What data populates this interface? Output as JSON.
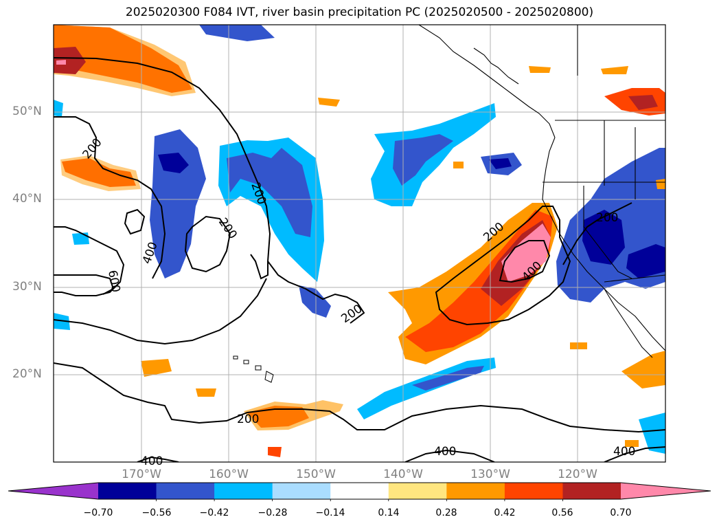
{
  "title": "2025020300 F084 IVT, river basin precipitation PC (2025020500 - 2025020800)",
  "axes": {
    "lat_labels": [
      "50°N",
      "40°N",
      "30°N",
      "20°N"
    ],
    "lon_labels": [
      "170°W",
      "160°W",
      "150°W",
      "140°W",
      "130°W",
      "120°W"
    ]
  },
  "contour_labels": [
    "200",
    "200",
    "200",
    "200",
    "200",
    "200",
    "400",
    "400",
    "400",
    "400",
    "600"
  ],
  "colorbar": {
    "ticks": [
      "−0.70",
      "−0.56",
      "−0.42",
      "−0.28",
      "−0.14",
      "0.14",
      "0.28",
      "0.42",
      "0.56",
      "0.70"
    ],
    "colors": [
      "#9933cc",
      "#000099",
      "#3355cc",
      "#00bbff",
      "#aaddff",
      "#ffffff",
      "#ffe680",
      "#ff9900",
      "#ff4400",
      "#b22222",
      "#ff88aa"
    ]
  },
  "palette": {
    "land": "#ffffff",
    "grid": "#b0b0b0",
    "coast": "#000000"
  }
}
